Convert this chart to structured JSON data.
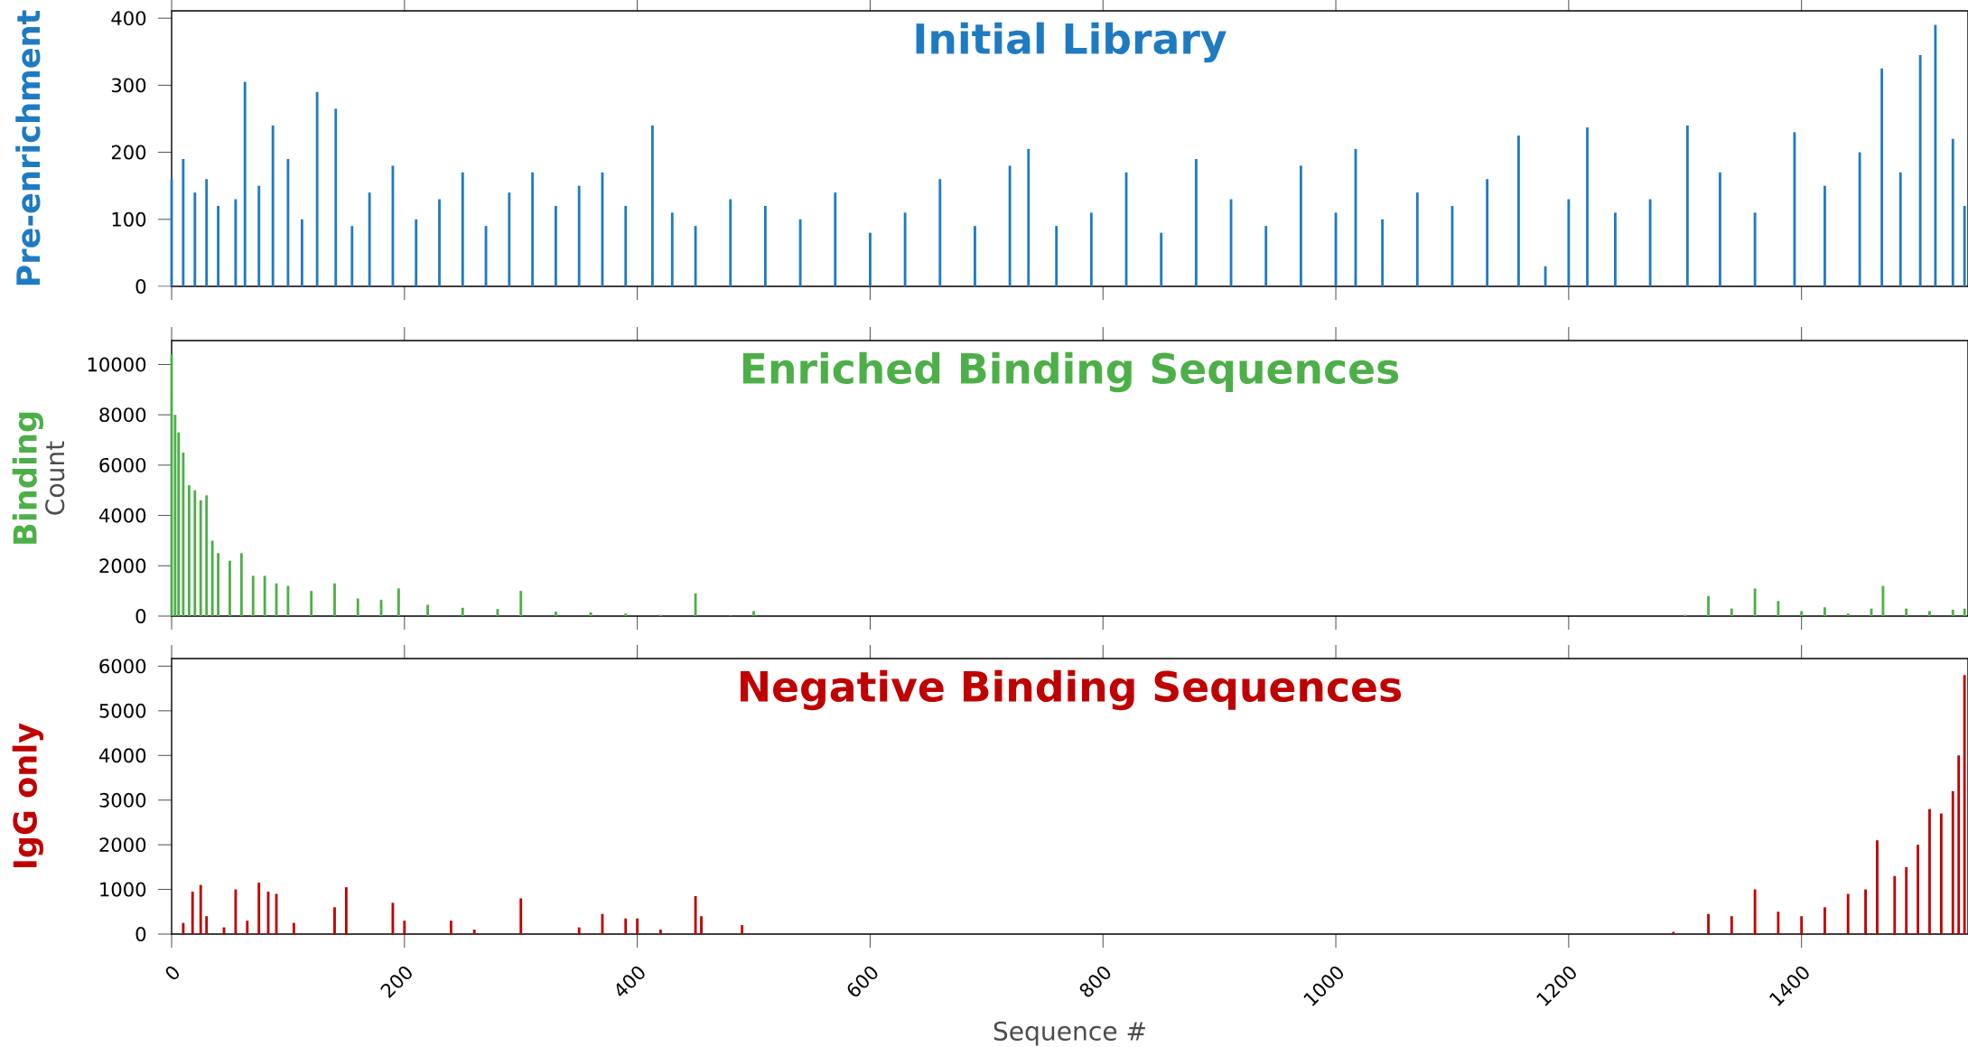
{
  "chart_data": [
    {
      "type": "bar",
      "title": "Initial Library",
      "annotations": [
        "Pre-enrichment"
      ],
      "xlim": [
        0,
        1543
      ],
      "ylim": [
        0,
        411
      ],
      "yticks": [
        0,
        100,
        200,
        300,
        400
      ],
      "xticks": [
        0,
        200,
        400,
        600,
        800,
        1000,
        1200,
        1400
      ],
      "tick_labels": "y",
      "x": [
        0,
        10,
        20,
        30,
        40,
        55,
        63,
        75,
        87,
        100,
        112,
        125,
        141,
        155,
        170,
        190,
        210,
        230,
        250,
        270,
        290,
        310,
        330,
        350,
        370,
        390,
        413,
        430,
        450,
        480,
        510,
        540,
        570,
        600,
        630,
        660,
        690,
        720,
        736,
        760,
        790,
        820,
        850,
        880,
        910,
        940,
        970,
        1000,
        1017,
        1040,
        1070,
        1100,
        1130,
        1157,
        1180,
        1200,
        1216,
        1240,
        1270,
        1302,
        1330,
        1360,
        1394,
        1420,
        1450,
        1469,
        1485,
        1502,
        1515,
        1530,
        1540
      ],
      "series": [
        {
          "color": "#1f7bc1",
          "values": [
            160,
            190,
            140,
            160,
            120,
            130,
            305,
            150,
            240,
            190,
            100,
            290,
            265,
            90,
            140,
            180,
            100,
            130,
            170,
            90,
            140,
            170,
            120,
            150,
            170,
            120,
            240,
            110,
            90,
            130,
            120,
            100,
            140,
            80,
            110,
            160,
            90,
            180,
            205,
            90,
            110,
            170,
            80,
            190,
            130,
            90,
            180,
            110,
            205,
            100,
            140,
            120,
            160,
            225,
            30,
            130,
            237,
            110,
            130,
            240,
            170,
            110,
            230,
            150,
            200,
            325,
            170,
            345,
            390,
            220,
            120
          ]
        }
      ]
    },
    {
      "type": "bar",
      "title": "Enriched Binding Sequences",
      "ylabel": "Count",
      "annotations": [
        "Binding"
      ],
      "xlim": [
        0,
        1543
      ],
      "ylim": [
        0,
        10950
      ],
      "yticks": [
        0,
        2000,
        4000,
        6000,
        8000,
        10000
      ],
      "xticks": [
        0,
        200,
        400,
        600,
        800,
        1000,
        1200,
        1400
      ],
      "tick_labels": "y",
      "x": [
        0,
        3,
        6,
        10,
        15,
        20,
        25,
        30,
        35,
        40,
        50,
        60,
        70,
        80,
        90,
        100,
        120,
        140,
        160,
        180,
        195,
        220,
        250,
        280,
        300,
        330,
        360,
        390,
        420,
        450,
        480,
        500,
        600,
        700,
        800,
        900,
        1000,
        1100,
        1200,
        1300,
        1320,
        1340,
        1360,
        1380,
        1400,
        1420,
        1440,
        1460,
        1470,
        1490,
        1510,
        1530,
        1540
      ],
      "series": [
        {
          "color": "#4daf48",
          "values": [
            10400,
            8000,
            7300,
            6500,
            5200,
            5000,
            4600,
            4800,
            3000,
            2500,
            2200,
            2500,
            1600,
            1600,
            1300,
            1200,
            1000,
            1300,
            700,
            650,
            1100,
            450,
            330,
            280,
            1000,
            180,
            150,
            100,
            50,
            900,
            20,
            200,
            0,
            0,
            0,
            0,
            0,
            0,
            0,
            50,
            800,
            300,
            1100,
            600,
            200,
            350,
            100,
            300,
            1200,
            300,
            200,
            250,
            300
          ]
        }
      ]
    },
    {
      "type": "bar",
      "title": "Negative Binding Sequences",
      "xlabel": "Sequence #",
      "annotations": [
        "IgG only"
      ],
      "xlim": [
        0,
        1543
      ],
      "ylim": [
        0,
        6170
      ],
      "yticks": [
        0,
        1000,
        2000,
        3000,
        4000,
        5000,
        6000
      ],
      "xticks": [
        0,
        200,
        400,
        600,
        800,
        1000,
        1200,
        1400
      ],
      "x": [
        0,
        10,
        18,
        25,
        30,
        45,
        55,
        65,
        75,
        83,
        90,
        105,
        140,
        150,
        190,
        200,
        240,
        260,
        300,
        350,
        370,
        390,
        400,
        420,
        450,
        455,
        490,
        600,
        800,
        1000,
        1200,
        1290,
        1320,
        1340,
        1360,
        1380,
        1400,
        1420,
        1440,
        1455,
        1465,
        1480,
        1490,
        1500,
        1510,
        1520,
        1530,
        1535,
        1540
      ],
      "series": [
        {
          "color": "#c00000",
          "values": [
            0,
            250,
            950,
            1100,
            400,
            150,
            1000,
            300,
            1150,
            950,
            900,
            250,
            600,
            1050,
            700,
            300,
            300,
            100,
            800,
            150,
            450,
            350,
            350,
            100,
            850,
            400,
            200,
            0,
            0,
            0,
            0,
            50,
            450,
            400,
            1000,
            500,
            400,
            600,
            900,
            1000,
            2100,
            1300,
            1500,
            2000,
            2800,
            2700,
            3200,
            4000,
            5800
          ]
        }
      ]
    }
  ]
}
